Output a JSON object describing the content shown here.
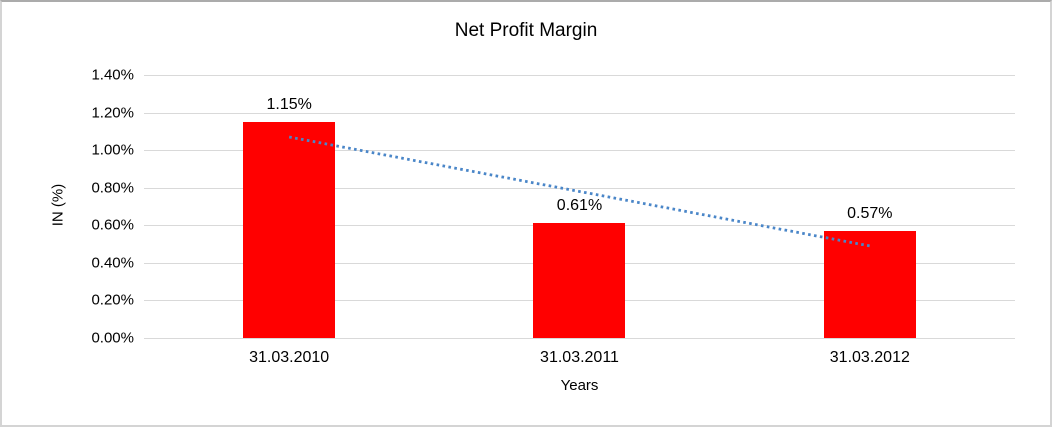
{
  "chart_data": {
    "type": "bar",
    "title": "Net Profit Margin",
    "xlabel": "Years",
    "ylabel": "IN (%)",
    "categories": [
      "31.03.2010",
      "31.03.2011",
      "31.03.2012"
    ],
    "values": [
      1.15,
      0.61,
      0.57
    ],
    "data_labels": [
      "1.15%",
      "0.61%",
      "0.57%"
    ],
    "ylim": [
      0,
      1.4
    ],
    "ytick_labels": [
      "1.40%",
      "1.20%",
      "1.00%",
      "0.80%",
      "0.60%",
      "0.40%",
      "0.20%",
      "0.00%"
    ],
    "grid": "horizontal",
    "legend": "none",
    "bar_color": "#FF0000",
    "gridline_color": "#D9D9D9",
    "text_color": "#000000",
    "trendline": {
      "type": "linear",
      "style": "dotted",
      "color": "#4A86C8",
      "start_value": 1.07,
      "end_value": 0.49
    }
  }
}
